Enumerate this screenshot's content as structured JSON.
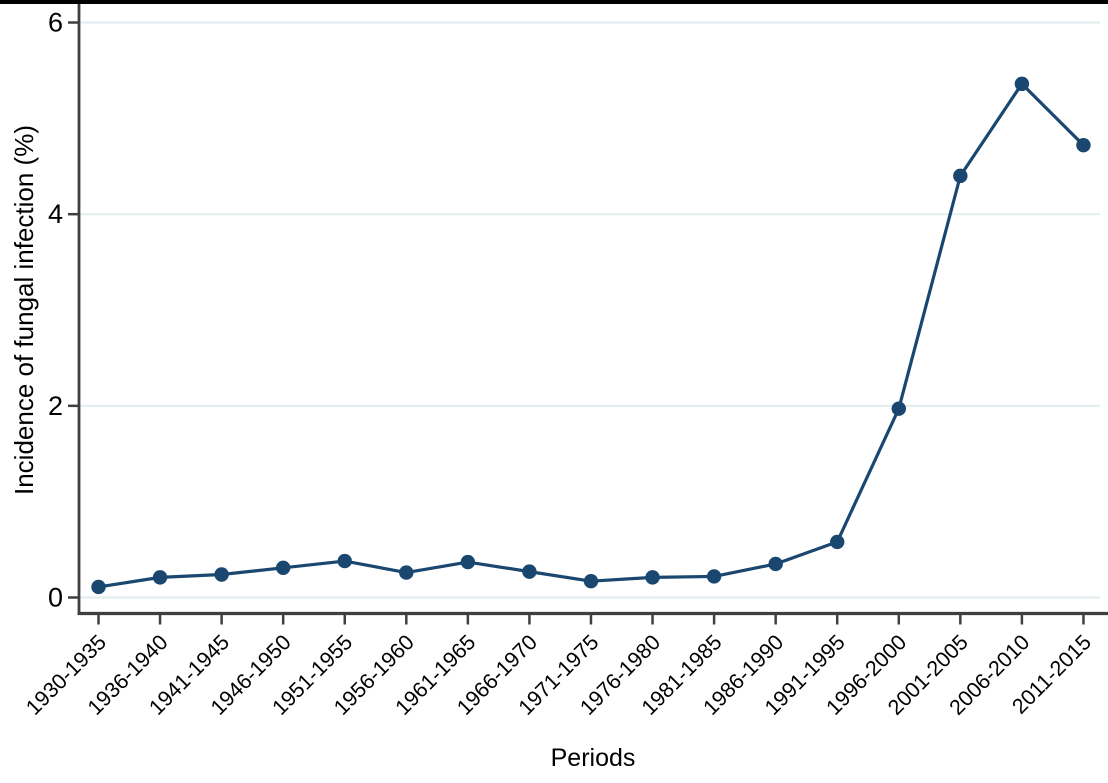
{
  "figure": {
    "top_border_color": "#000000",
    "background_color": "#ffffff"
  },
  "chart_data": {
    "type": "line",
    "title": "",
    "xlabel": "Periods",
    "ylabel": "Incidence of fungal infection (%)",
    "categories": [
      "1930-1935",
      "1936-1940",
      "1941-1945",
      "1946-1950",
      "1951-1955",
      "1956-1960",
      "1961-1965",
      "1966-1970",
      "1971-1975",
      "1976-1980",
      "1981-1985",
      "1986-1990",
      "1991-1995",
      "1996-2000",
      "2001-2005",
      "2006-2010",
      "2011-2015"
    ],
    "series": [
      {
        "name": "Incidence of fungal infection (%)",
        "values": [
          0.11,
          0.21,
          0.24,
          0.31,
          0.38,
          0.26,
          0.37,
          0.27,
          0.17,
          0.21,
          0.22,
          0.35,
          0.58,
          1.97,
          4.4,
          5.36,
          4.72
        ]
      }
    ],
    "yticks": [
      0,
      2,
      4,
      6
    ],
    "ylim": [
      0,
      6.25
    ],
    "grid": true,
    "legend": "none",
    "line_color": "#1a476f",
    "marker_color": "#1a476f",
    "gridline_color": "#e4eef1",
    "axis_color": "#3f3f3f",
    "tick_label_color": "#000000"
  }
}
